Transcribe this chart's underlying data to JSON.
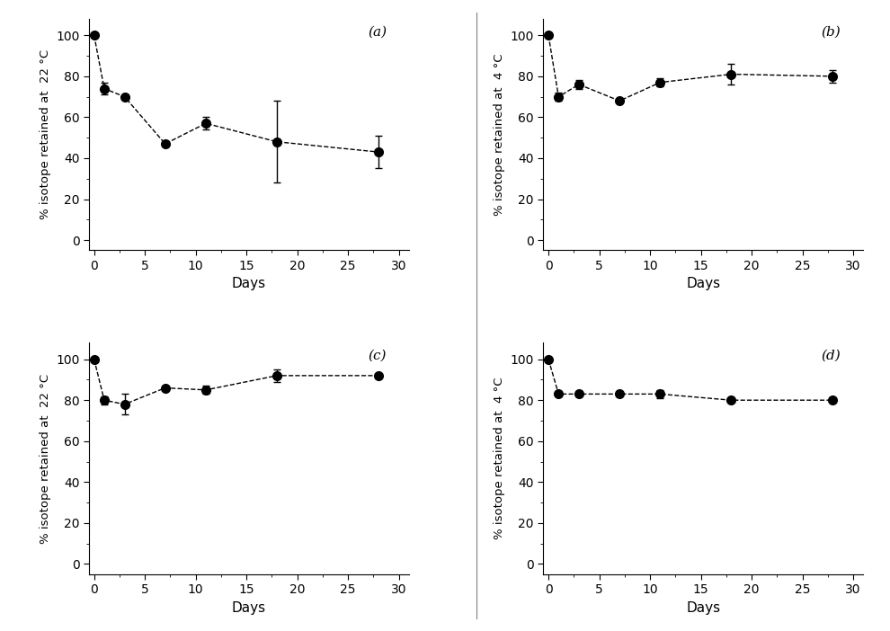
{
  "panels": [
    {
      "label": "(a)",
      "ylabel": "% isotope retained at  22 °C",
      "days": [
        0,
        1,
        3,
        7,
        11,
        18,
        28
      ],
      "values": [
        100,
        74,
        70,
        47,
        57,
        48,
        43
      ],
      "yerr": [
        0,
        3,
        0,
        0,
        3,
        20,
        8
      ]
    },
    {
      "label": "(b)",
      "ylabel": "% isotope retained at  4 °C",
      "days": [
        0,
        1,
        3,
        7,
        11,
        18,
        28
      ],
      "values": [
        100,
        70,
        76,
        68,
        77,
        81,
        80
      ],
      "yerr": [
        0,
        2,
        2,
        0,
        2,
        5,
        3
      ]
    },
    {
      "label": "(c)",
      "ylabel": "% isotope retained at  22 °C",
      "days": [
        0,
        1,
        3,
        7,
        11,
        18,
        28
      ],
      "values": [
        100,
        80,
        78,
        86,
        85,
        92,
        92
      ],
      "yerr": [
        0,
        2,
        5,
        0,
        2,
        3,
        0
      ]
    },
    {
      "label": "(d)",
      "ylabel": "% isotope retained at  4 °C",
      "days": [
        0,
        1,
        3,
        7,
        11,
        18,
        28
      ],
      "values": [
        100,
        83,
        83,
        83,
        83,
        80,
        80
      ],
      "yerr": [
        0,
        0,
        0,
        0,
        2,
        0,
        0
      ]
    }
  ],
  "xlim": [
    -0.5,
    31
  ],
  "ylim": [
    -5,
    108
  ],
  "xticks": [
    0,
    5,
    10,
    15,
    20,
    25,
    30
  ],
  "yticks": [
    0,
    20,
    40,
    60,
    80,
    100
  ],
  "xlabel": "Days",
  "bg_color": "#ffffff",
  "line_color": "black",
  "marker_color": "black",
  "marker_size": 7,
  "line_style": "--",
  "capsize": 3,
  "figsize": [
    9.9,
    7.02
  ],
  "dpi": 100
}
